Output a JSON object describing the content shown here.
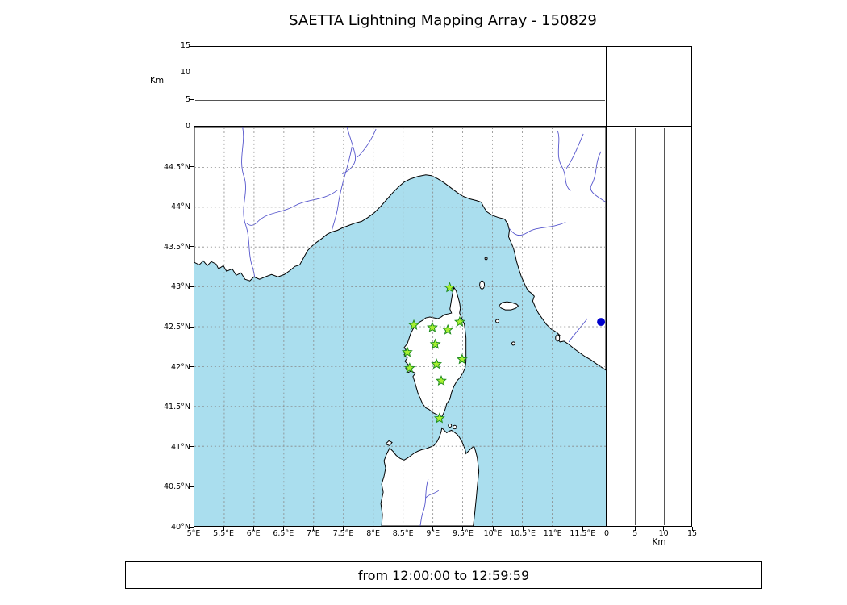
{
  "title": "SAETTA Lightning Mapping Array - 150829",
  "footer": {
    "time_range": "from 12:00:00 to 12:59:59"
  },
  "axes": {
    "km_label": "Km",
    "altitude_tick_labels": [
      "0",
      "5",
      "10",
      "15"
    ],
    "lon_tick_labels": [
      "5°E",
      "5.5°E",
      "6°E",
      "6.5°E",
      "7°E",
      "7.5°E",
      "8°E",
      "8.5°E",
      "9°E",
      "9.5°E",
      "10°E",
      "10.5°E",
      "11°E",
      "11.5°E"
    ],
    "lat_tick_labels": [
      "40°N",
      "40.5°N",
      "41°N",
      "41.5°N",
      "42°N",
      "42.5°N",
      "43°N",
      "43.5°N",
      "44°N",
      "44.5°N"
    ]
  },
  "chart_data": {
    "type": "scatter",
    "title": "SAETTA Lightning Mapping Array - 150829",
    "subtitle": "from 12:00:00 to 12:59:59",
    "main_panel": {
      "xlim": [
        5,
        11.9
      ],
      "ylim": [
        40,
        45
      ],
      "xticks": [
        5,
        5.5,
        6,
        6.5,
        7,
        7.5,
        8,
        8.5,
        9,
        9.5,
        10,
        10.5,
        11,
        11.5
      ],
      "yticks": [
        40,
        40.5,
        41,
        41.5,
        42,
        42.5,
        43,
        43.5,
        44,
        44.5
      ],
      "grid": true
    },
    "top_panel": {
      "ylabel": "Km",
      "ylim": [
        0,
        15
      ],
      "yticks": [
        0,
        5,
        10,
        15
      ],
      "gridlines_km": [
        5,
        10
      ],
      "series": []
    },
    "right_panel": {
      "xlabel": "Km",
      "xlim": [
        0,
        15
      ],
      "xticks": [
        0,
        5,
        10,
        15
      ],
      "gridlines_km": [
        5,
        10
      ],
      "series": []
    },
    "stations": [
      {
        "lon": 9.28,
        "lat": 42.99
      },
      {
        "lon": 8.68,
        "lat": 42.52
      },
      {
        "lon": 8.99,
        "lat": 42.49
      },
      {
        "lon": 9.25,
        "lat": 42.46
      },
      {
        "lon": 9.45,
        "lat": 42.56
      },
      {
        "lon": 9.04,
        "lat": 42.28
      },
      {
        "lon": 8.57,
        "lat": 42.18
      },
      {
        "lon": 8.61,
        "lat": 41.98
      },
      {
        "lon": 9.06,
        "lat": 42.03
      },
      {
        "lon": 9.49,
        "lat": 42.09
      },
      {
        "lon": 9.14,
        "lat": 41.82
      },
      {
        "lon": 9.11,
        "lat": 41.35
      }
    ],
    "extra_marker": {
      "lon": 11.82,
      "lat": 42.56,
      "shape": "circle",
      "color": "#0000cc"
    },
    "colors": {
      "sea": "#aadeee",
      "land": "#ffffff",
      "coast": "#000000",
      "river": "#5555cc",
      "grid": "#888888",
      "station_fill": "#a8f032",
      "station_edge": "#1e8c1e"
    }
  }
}
